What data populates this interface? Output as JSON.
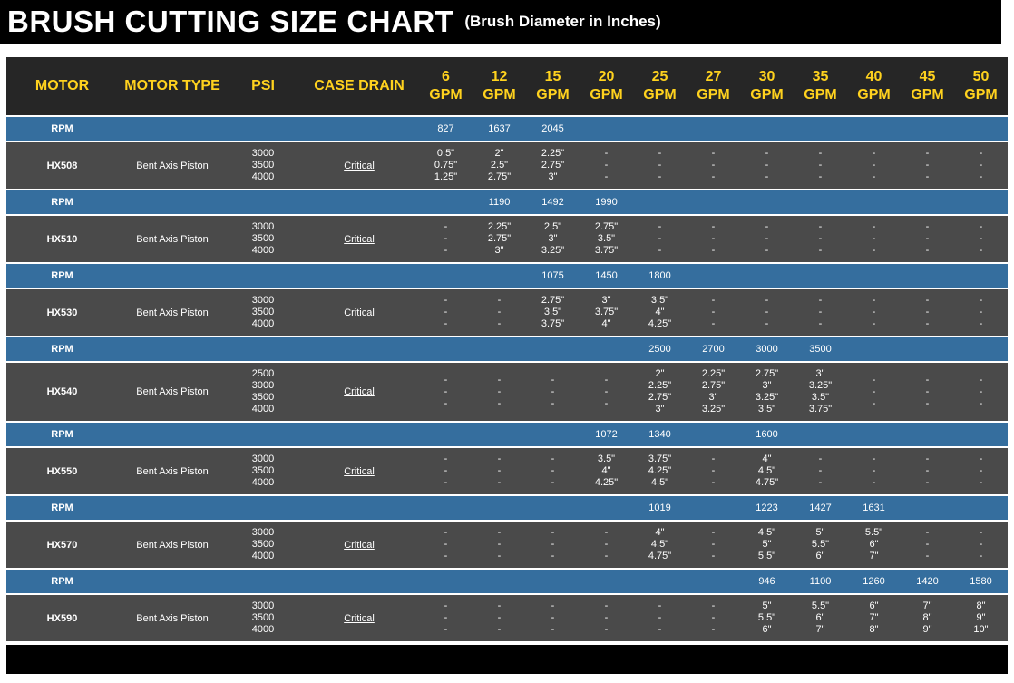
{
  "title": {
    "main": "BRUSH CUTTING SIZE CHART",
    "sub": "(Brush Diameter in Inches)"
  },
  "header": {
    "motor": "MOTOR",
    "motor_type": "MOTOR TYPE",
    "psi": "PSI",
    "case_drain": "CASE DRAIN",
    "gpm_unit": "GPM",
    "rpm_label": "RPM",
    "gpm_columns": [
      "6",
      "12",
      "15",
      "20",
      "25",
      "27",
      "30",
      "35",
      "40",
      "45",
      "50"
    ]
  },
  "colors": {
    "title_bar_bg": "#000000",
    "header_bg": "#262626",
    "header_text": "#FFD21E",
    "rpm_row_bg": "#356E9E",
    "motor_row_bg": "#4A4A4A",
    "row_text": "#FFFFFF",
    "bottom_bar_bg": "#000000"
  },
  "chart_data": {
    "type": "table",
    "title": "BRUSH CUTTING SIZE CHART",
    "subtitle": "(Brush Diameter in Inches)",
    "columns": [
      "MOTOR",
      "MOTOR TYPE",
      "PSI",
      "CASE DRAIN",
      "6 GPM",
      "12 GPM",
      "15 GPM",
      "20 GPM",
      "25 GPM",
      "27 GPM",
      "30 GPM",
      "35 GPM",
      "40 GPM",
      "45 GPM",
      "50 GPM"
    ],
    "motors": [
      {
        "name": "HX508",
        "motor_type": "Bent Axis Piston",
        "psi": [
          "3000",
          "3500",
          "4000"
        ],
        "case_drain": "Critical",
        "rpm": [
          "827",
          "1637",
          "2045",
          "",
          "",
          "",
          "",
          "",
          "",
          "",
          ""
        ],
        "sizes": [
          [
            "0.5\"",
            "0.75\"",
            "1.25\""
          ],
          [
            "2\"",
            "2.5\"",
            "2.75\""
          ],
          [
            "2.25\"",
            "2.75\"",
            "3\""
          ],
          [
            "-",
            "-",
            "-"
          ],
          [
            "-",
            "-",
            "-"
          ],
          [
            "-",
            "-",
            "-"
          ],
          [
            "-",
            "-",
            "-"
          ],
          [
            "-",
            "-",
            "-"
          ],
          [
            "-",
            "-",
            "-"
          ],
          [
            "-",
            "-",
            "-"
          ],
          [
            "-",
            "-",
            "-"
          ]
        ]
      },
      {
        "name": "HX510",
        "motor_type": "Bent Axis Piston",
        "psi": [
          "3000",
          "3500",
          "4000"
        ],
        "case_drain": "Critical",
        "rpm": [
          "",
          "1190",
          "1492",
          "1990",
          "",
          "",
          "",
          "",
          "",
          "",
          ""
        ],
        "sizes": [
          [
            "-",
            "-",
            "-"
          ],
          [
            "2.25\"",
            "2.75\"",
            "3\""
          ],
          [
            "2.5\"",
            "3\"",
            "3.25\""
          ],
          [
            "2.75\"",
            "3.5\"",
            "3.75\""
          ],
          [
            "-",
            "-",
            "-"
          ],
          [
            "-",
            "-",
            "-"
          ],
          [
            "-",
            "-",
            "-"
          ],
          [
            "-",
            "-",
            "-"
          ],
          [
            "-",
            "-",
            "-"
          ],
          [
            "-",
            "-",
            "-"
          ],
          [
            "-",
            "-",
            "-"
          ]
        ]
      },
      {
        "name": "HX530",
        "motor_type": "Bent Axis Piston",
        "psi": [
          "3000",
          "3500",
          "4000"
        ],
        "case_drain": "Critical",
        "rpm": [
          "",
          "",
          "1075",
          "1450",
          "1800",
          "",
          "",
          "",
          "",
          "",
          ""
        ],
        "sizes": [
          [
            "-",
            "-",
            "-"
          ],
          [
            "-",
            "-",
            "-"
          ],
          [
            "2.75\"",
            "3.5\"",
            "3.75\""
          ],
          [
            "3\"",
            "3.75\"",
            "4\""
          ],
          [
            "3.5\"",
            "4\"",
            "4.25\""
          ],
          [
            "-",
            "-",
            "-"
          ],
          [
            "-",
            "-",
            "-"
          ],
          [
            "-",
            "-",
            "-"
          ],
          [
            "-",
            "-",
            "-"
          ],
          [
            "-",
            "-",
            "-"
          ],
          [
            "-",
            "-",
            "-"
          ]
        ]
      },
      {
        "name": "HX540",
        "motor_type": "Bent Axis Piston",
        "psi": [
          "2500",
          "3000",
          "3500",
          "4000"
        ],
        "case_drain": "Critical",
        "rpm": [
          "",
          "",
          "",
          "",
          "2500",
          "2700",
          "3000",
          "3500",
          "",
          "",
          ""
        ],
        "sizes": [
          [
            "-",
            "-",
            "-"
          ],
          [
            "-",
            "-",
            "-"
          ],
          [
            "-",
            "-",
            "-"
          ],
          [
            "-",
            "-",
            "-"
          ],
          [
            "2\"",
            "2.25\"",
            "2.75\"",
            "3\""
          ],
          [
            "2.25\"",
            "2.75\"",
            "3\"",
            "3.25\""
          ],
          [
            "2.75\"",
            "3\"",
            "3.25\"",
            "3.5\""
          ],
          [
            "3\"",
            "3.25\"",
            "3.5\"",
            "3.75\""
          ],
          [
            "-",
            "-",
            "-"
          ],
          [
            "-",
            "-",
            "-"
          ],
          [
            "-",
            "-",
            "-"
          ]
        ]
      },
      {
        "name": "HX550",
        "motor_type": "Bent Axis Piston",
        "psi": [
          "3000",
          "3500",
          "4000"
        ],
        "case_drain": "Critical",
        "rpm": [
          "",
          "",
          "",
          "1072",
          "1340",
          "",
          "1600",
          "",
          "",
          "",
          ""
        ],
        "sizes": [
          [
            "-",
            "-",
            "-"
          ],
          [
            "-",
            "-",
            "-"
          ],
          [
            "-",
            "-",
            "-"
          ],
          [
            "3.5\"",
            "4\"",
            "4.25\""
          ],
          [
            "3.75\"",
            "4.25\"",
            "4.5\""
          ],
          [
            "-",
            "-",
            "-"
          ],
          [
            "4\"",
            "4.5\"",
            "4.75\""
          ],
          [
            "-",
            "-",
            "-"
          ],
          [
            "-",
            "-",
            "-"
          ],
          [
            "-",
            "-",
            "-"
          ],
          [
            "-",
            "-",
            "-"
          ]
        ]
      },
      {
        "name": "HX570",
        "motor_type": "Bent Axis Piston",
        "psi": [
          "3000",
          "3500",
          "4000"
        ],
        "case_drain": "Critical",
        "rpm": [
          "",
          "",
          "",
          "",
          "1019",
          "",
          "1223",
          "1427",
          "1631",
          "",
          ""
        ],
        "sizes": [
          [
            "-",
            "-",
            "-"
          ],
          [
            "-",
            "-",
            "-"
          ],
          [
            "-",
            "-",
            "-"
          ],
          [
            "-",
            "-",
            "-"
          ],
          [
            "4\"",
            "4.5\"",
            "4.75\""
          ],
          [
            "-",
            "-",
            "-"
          ],
          [
            "4.5\"",
            "5\"",
            "5.5\""
          ],
          [
            "5\"",
            "5.5\"",
            "6\""
          ],
          [
            "5.5\"",
            "6\"",
            "7\""
          ],
          [
            "-",
            "-",
            "-"
          ],
          [
            "-",
            "-",
            "-"
          ]
        ]
      },
      {
        "name": "HX590",
        "motor_type": "Bent Axis Piston",
        "psi": [
          "3000",
          "3500",
          "4000"
        ],
        "case_drain": "Critical",
        "rpm": [
          "",
          "",
          "",
          "",
          "",
          "",
          "946",
          "1100",
          "1260",
          "1420",
          "1580"
        ],
        "sizes": [
          [
            "-",
            "-",
            "-"
          ],
          [
            "-",
            "-",
            "-"
          ],
          [
            "-",
            "-",
            "-"
          ],
          [
            "-",
            "-",
            "-"
          ],
          [
            "-",
            "-",
            "-"
          ],
          [
            "-",
            "-",
            "-"
          ],
          [
            "5\"",
            "5.5\"",
            "6\""
          ],
          [
            "5.5\"",
            "6\"",
            "7\""
          ],
          [
            "6\"",
            "7\"",
            "8\""
          ],
          [
            "7\"",
            "8\"",
            "9\""
          ],
          [
            "8\"",
            "9\"",
            "10\""
          ]
        ]
      }
    ]
  }
}
